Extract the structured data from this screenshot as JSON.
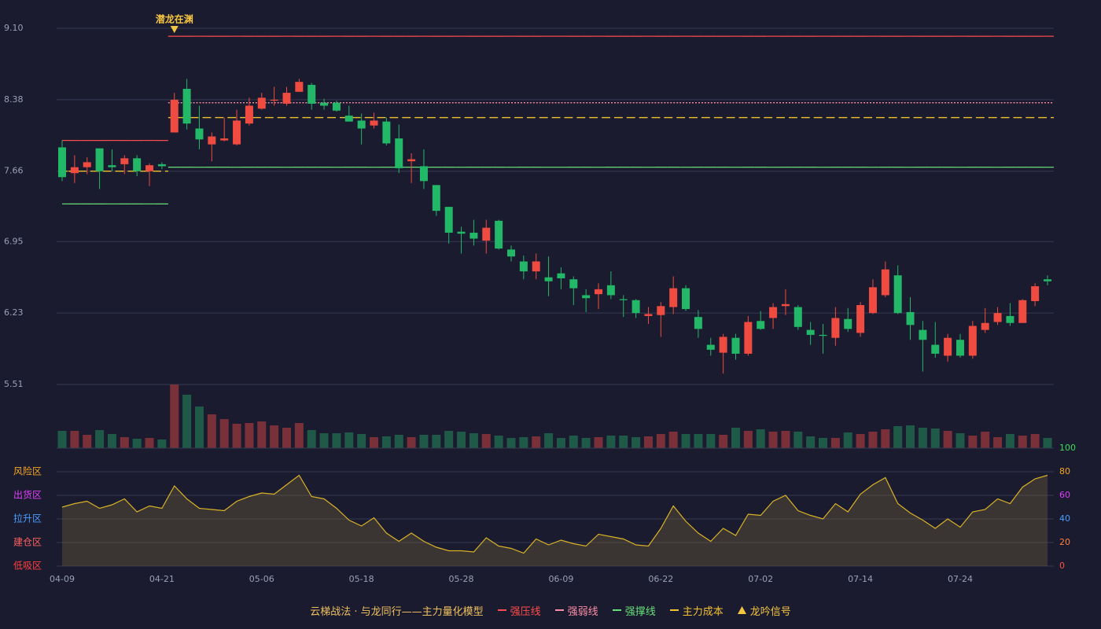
{
  "chart_data": {
    "type": "candlestick",
    "categories": [
      "04-09",
      null,
      null,
      null,
      null,
      null,
      null,
      null,
      "04-21",
      null,
      null,
      null,
      null,
      null,
      null,
      null,
      "05-06",
      null,
      null,
      null,
      null,
      null,
      null,
      null,
      "05-18",
      null,
      null,
      null,
      null,
      null,
      null,
      null,
      "05-28",
      null,
      null,
      null,
      null,
      null,
      null,
      null,
      "06-09",
      null,
      null,
      null,
      null,
      null,
      null,
      null,
      "06-22",
      null,
      null,
      null,
      null,
      null,
      null,
      null,
      "07-02",
      null,
      null,
      null,
      null,
      null,
      null,
      null,
      "07-14",
      null,
      null,
      null,
      null,
      null,
      null,
      null,
      "07-24",
      null,
      null,
      null,
      null,
      null,
      null,
      null
    ],
    "open": [
      7.9,
      7.64,
      7.7,
      7.89,
      7.72,
      7.73,
      7.79,
      7.66,
      7.73,
      8.05,
      8.49,
      8.09,
      7.93,
      7.97,
      7.93,
      8.14,
      8.29,
      8.37,
      8.34,
      8.46,
      8.53,
      8.35,
      8.35,
      8.22,
      8.17,
      8.12,
      8.16,
      7.99,
      7.76,
      7.71,
      7.52,
      7.3,
      7.05,
      7.04,
      6.96,
      7.16,
      6.87,
      6.75,
      6.65,
      6.59,
      6.63,
      6.57,
      6.41,
      6.42,
      6.51,
      6.37,
      6.36,
      6.2,
      6.21,
      6.29,
      6.48,
      6.19,
      5.91,
      5.83,
      5.98,
      5.82,
      6.15,
      6.18,
      6.3,
      6.29,
      6.06,
      6.01,
      5.98,
      6.17,
      6.03,
      6.23,
      6.41,
      6.61,
      6.24,
      6.06,
      5.91,
      5.8,
      5.96,
      5.8,
      6.06,
      6.14,
      6.2,
      6.13,
      6.35,
      6.57
    ],
    "high": [
      7.97,
      7.82,
      7.8,
      7.89,
      7.88,
      7.82,
      7.82,
      7.74,
      7.75,
      8.45,
      8.59,
      8.32,
      8.05,
      8.2,
      8.28,
      8.4,
      8.45,
      8.51,
      8.51,
      8.59,
      8.55,
      8.39,
      8.37,
      8.32,
      8.24,
      8.25,
      8.2,
      8.13,
      7.84,
      7.88,
      7.52,
      7.3,
      7.1,
      7.17,
      7.17,
      7.17,
      6.91,
      6.81,
      6.83,
      6.8,
      6.69,
      6.6,
      6.47,
      6.53,
      6.65,
      6.41,
      6.37,
      6.29,
      6.34,
      6.6,
      6.51,
      6.26,
      5.98,
      6.02,
      6.02,
      6.2,
      6.25,
      6.33,
      6.47,
      6.31,
      6.14,
      6.12,
      6.29,
      6.28,
      6.34,
      6.57,
      6.75,
      6.71,
      6.39,
      6.15,
      6.14,
      6.02,
      6.02,
      6.15,
      6.28,
      6.29,
      6.33,
      6.37,
      6.53,
      6.61
    ],
    "low": [
      7.56,
      7.54,
      7.63,
      7.48,
      7.66,
      7.63,
      7.61,
      7.51,
      7.68,
      8.05,
      8.08,
      7.88,
      7.76,
      7.96,
      7.92,
      8.12,
      8.28,
      8.32,
      8.32,
      8.46,
      8.28,
      8.28,
      8.26,
      8.16,
      7.93,
      8.09,
      7.92,
      7.64,
      7.54,
      7.48,
      7.21,
      6.93,
      6.83,
      6.91,
      6.83,
      6.87,
      6.75,
      6.57,
      6.57,
      6.4,
      6.47,
      6.31,
      6.24,
      6.27,
      6.37,
      6.19,
      6.18,
      6.12,
      5.99,
      6.22,
      6.25,
      5.98,
      5.8,
      5.62,
      5.76,
      5.8,
      6.06,
      6.07,
      6.21,
      6.06,
      5.91,
      5.82,
      5.9,
      6.04,
      5.99,
      6.22,
      6.39,
      6.22,
      5.96,
      5.64,
      5.78,
      5.74,
      5.78,
      5.77,
      6.03,
      6.11,
      6.1,
      6.13,
      6.3,
      6.51
    ],
    "close": [
      7.6,
      7.7,
      7.75,
      7.66,
      7.7,
      7.79,
      7.66,
      7.72,
      7.71,
      8.38,
      8.14,
      7.98,
      8.01,
      7.99,
      8.17,
      8.32,
      8.4,
      8.38,
      8.45,
      8.56,
      8.34,
      8.32,
      8.27,
      8.16,
      8.09,
      8.17,
      7.94,
      7.69,
      7.78,
      7.56,
      7.26,
      7.04,
      7.03,
      6.98,
      7.09,
      6.88,
      6.8,
      6.65,
      6.75,
      6.55,
      6.58,
      6.48,
      6.38,
      6.47,
      6.41,
      6.36,
      6.23,
      6.22,
      6.3,
      6.48,
      6.27,
      6.07,
      5.86,
      5.99,
      5.82,
      6.14,
      6.07,
      6.29,
      6.32,
      6.09,
      6.01,
      6.0,
      6.18,
      6.07,
      6.31,
      6.49,
      6.67,
      6.23,
      6.11,
      5.96,
      5.82,
      5.98,
      5.8,
      6.1,
      6.13,
      6.23,
      6.13,
      6.36,
      6.5,
      6.55
    ],
    "up_color": "#ef4b40",
    "down_color": "#22b868",
    "ylim": [
      5.51,
      9.1
    ],
    "yticks": [
      {
        "value": 9.1,
        "label": "9.10"
      },
      8.38,
      7.66,
      6.95,
      6.23,
      5.51
    ],
    "grid": true,
    "volume": {
      "values": [
        22,
        22,
        17,
        23,
        18,
        14,
        12,
        13,
        11,
        81,
        68,
        53,
        43,
        37,
        31,
        32,
        34,
        29,
        26,
        32,
        23,
        19,
        19,
        20,
        18,
        14,
        15,
        17,
        14,
        17,
        17,
        22,
        21,
        19,
        18,
        16,
        13,
        14,
        15,
        19,
        13,
        16,
        13,
        14,
        16,
        16,
        14,
        15,
        18,
        21,
        18,
        18,
        18,
        17,
        26,
        22,
        24,
        21,
        22,
        21,
        15,
        13,
        13,
        20,
        18,
        21,
        24,
        28,
        29,
        26,
        25,
        22,
        19,
        16,
        21,
        14,
        18,
        16,
        18,
        13
      ],
      "up_color": "#7a3038",
      "down_color": "#1f5a48"
    },
    "levels": [
      {
        "name": "强压线",
        "color": "#ff4d4d",
        "style": "solid",
        "values": [
          7.97,
          7.97,
          7.97,
          7.97,
          7.97,
          7.97,
          7.97,
          7.97,
          7.97,
          9.02,
          9.02,
          9.02,
          9.02,
          9.02,
          9.02,
          9.02,
          9.02,
          9.02,
          9.02,
          9.02,
          9.02,
          9.02,
          9.02,
          9.02,
          9.02,
          9.02,
          9.02,
          9.02,
          9.02,
          9.02,
          9.02,
          9.02,
          9.02,
          9.02,
          9.02,
          9.02,
          9.02,
          9.02,
          9.02,
          9.02,
          9.02,
          9.02,
          9.02,
          9.02,
          9.02,
          9.02,
          9.02,
          9.02,
          9.02,
          9.02,
          9.02,
          9.02,
          9.02,
          9.02,
          9.02,
          9.02,
          9.02,
          9.02,
          9.02,
          9.02,
          9.02,
          9.02,
          9.02,
          9.02,
          9.02,
          9.02,
          9.02,
          9.02,
          9.02,
          9.02,
          9.02,
          9.02,
          9.02,
          9.02,
          9.02,
          9.02,
          9.02,
          9.02,
          9.02,
          9.02
        ]
      },
      {
        "name": "强弱线",
        "color": "#ff8fa8",
        "style": "dotted",
        "values": [
          null,
          null,
          null,
          null,
          null,
          null,
          null,
          null,
          null,
          8.35,
          8.35,
          8.35,
          8.35,
          8.35,
          8.35,
          8.35,
          8.35,
          8.35,
          8.35,
          8.35,
          8.35,
          8.35,
          8.35,
          8.35,
          8.35,
          8.35,
          8.35,
          8.35,
          8.35,
          8.35,
          8.35,
          8.35,
          8.35,
          8.35,
          8.35,
          8.35,
          8.35,
          8.35,
          8.35,
          8.35,
          8.35,
          8.35,
          8.35,
          8.35,
          8.35,
          8.35,
          8.35,
          8.35,
          8.35,
          8.35,
          8.35,
          8.35,
          8.35,
          8.35,
          8.35,
          8.35,
          8.35,
          8.35,
          8.35,
          8.35,
          8.35,
          8.35,
          8.35,
          8.35,
          8.35,
          8.35,
          8.35,
          8.35,
          8.35,
          8.35,
          8.35,
          8.35,
          8.35,
          8.35,
          8.35,
          8.35,
          8.35,
          8.35,
          8.35,
          8.35
        ]
      },
      {
        "name": "强撑线",
        "color": "#66e07a",
        "style": "solid",
        "values": [
          7.33,
          7.33,
          7.33,
          7.33,
          7.33,
          7.33,
          7.33,
          7.33,
          7.33,
          7.7,
          7.7,
          7.7,
          7.7,
          7.7,
          7.7,
          7.7,
          7.7,
          7.7,
          7.7,
          7.7,
          7.7,
          7.7,
          7.7,
          7.7,
          7.7,
          7.7,
          7.7,
          7.7,
          7.7,
          7.7,
          7.7,
          7.7,
          7.7,
          7.7,
          7.7,
          7.7,
          7.7,
          7.7,
          7.7,
          7.7,
          7.7,
          7.7,
          7.7,
          7.7,
          7.7,
          7.7,
          7.7,
          7.7,
          7.7,
          7.7,
          7.7,
          7.7,
          7.7,
          7.7,
          7.7,
          7.7,
          7.7,
          7.7,
          7.7,
          7.7,
          7.7,
          7.7,
          7.7,
          7.7,
          7.7,
          7.7,
          7.7,
          7.7,
          7.7,
          7.7,
          7.7,
          7.7,
          7.7,
          7.7,
          7.7,
          7.7,
          7.7,
          7.7,
          7.7,
          7.7
        ]
      },
      {
        "name": "主力成本",
        "color": "#f2c230",
        "style": "dashed",
        "values": [
          7.66,
          7.66,
          7.66,
          7.66,
          7.66,
          7.66,
          7.66,
          7.66,
          7.66,
          8.2,
          8.2,
          8.2,
          8.2,
          8.2,
          8.2,
          8.2,
          8.2,
          8.2,
          8.2,
          8.2,
          8.2,
          8.2,
          8.2,
          8.2,
          8.2,
          8.2,
          8.2,
          8.2,
          8.2,
          8.2,
          8.2,
          8.2,
          8.2,
          8.2,
          8.2,
          8.2,
          8.2,
          8.2,
          8.2,
          8.2,
          8.2,
          8.2,
          8.2,
          8.2,
          8.2,
          8.2,
          8.2,
          8.2,
          8.2,
          8.2,
          8.2,
          8.2,
          8.2,
          8.2,
          8.2,
          8.2,
          8.2,
          8.2,
          8.2,
          8.2,
          8.2,
          8.2,
          8.2,
          8.2,
          8.2,
          8.2,
          8.2,
          8.2,
          8.2,
          8.2,
          8.2,
          8.2,
          8.2,
          8.2,
          8.2,
          8.2,
          8.2,
          8.2,
          8.2,
          8.2
        ]
      }
    ],
    "signals": {
      "name": "龙吟信号",
      "color": "#f5c542",
      "labels": [
        null,
        null,
        null,
        null,
        null,
        null,
        null,
        null,
        null,
        "潜龙在渊",
        null,
        null,
        null,
        null,
        null,
        null,
        null,
        null,
        null,
        null,
        null,
        null,
        null,
        null,
        null,
        null,
        null,
        null,
        null,
        null,
        null,
        null,
        null,
        null,
        null,
        null,
        null,
        null,
        null,
        null,
        null,
        null,
        null,
        null,
        null,
        null,
        null,
        null,
        null,
        null,
        null,
        null,
        null,
        null,
        null,
        null,
        null,
        null,
        null,
        null,
        null,
        null,
        null,
        null,
        null,
        null,
        null,
        null,
        null,
        null,
        null,
        null,
        null,
        null,
        null,
        null,
        null,
        null,
        null,
        null
      ]
    },
    "indicator": {
      "type": "area",
      "color": "#d9b326",
      "fill": "rgba(120,100,60,0.35)",
      "values": [
        50,
        53,
        55,
        49,
        52,
        57,
        46,
        51,
        49,
        68,
        57,
        49,
        48,
        47,
        55,
        59,
        62,
        61,
        69,
        77,
        59,
        57,
        49,
        39,
        34,
        41,
        28,
        21,
        28,
        21,
        16,
        13,
        13,
        12,
        24,
        17,
        15,
        11,
        23,
        18,
        22,
        19,
        17,
        27,
        25,
        23,
        18,
        17,
        32,
        51,
        38,
        28,
        21,
        32,
        26,
        44,
        43,
        55,
        60,
        47,
        43,
        40,
        53,
        46,
        61,
        69,
        75,
        53,
        45,
        39,
        32,
        40,
        33,
        46,
        48,
        57,
        53,
        67,
        74,
        77
      ],
      "ylim": [
        0,
        100
      ],
      "yticks": [
        0,
        20,
        40,
        60,
        80,
        100
      ],
      "ytick_colors": [
        "#ff4d4d",
        "#ff8040",
        "#4a9eff",
        "#e040fb",
        "#f5a623",
        "#3ddc5a"
      ],
      "zones": [
        {
          "label": "风险区",
          "value": 80,
          "color": "#f5a623"
        },
        {
          "label": "出货区",
          "value": 60,
          "color": "#e040fb"
        },
        {
          "label": "拉升区",
          "value": 40,
          "color": "#4a9eff"
        },
        {
          "label": "建仓区",
          "value": 20,
          "color": "#ff6060"
        },
        {
          "label": "低吸区",
          "value": 0,
          "color": "#ff4040"
        }
      ]
    },
    "legend_title": "云梯战法 · 与龙同行——主力量化模型"
  }
}
